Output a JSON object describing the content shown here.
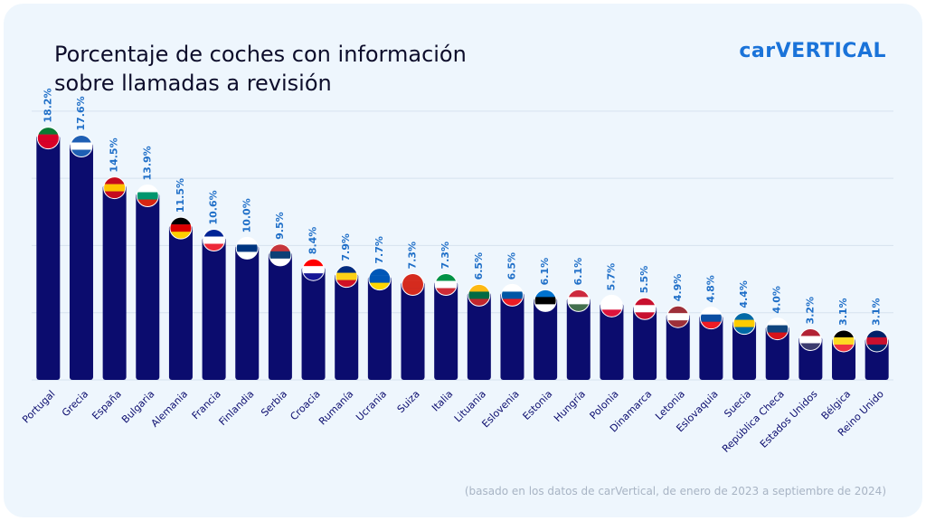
{
  "chart_data": {
    "type": "bar",
    "title": "Porcentaje de coches con información sobre llamadas a revisión",
    "brand": "carVERTICAL",
    "note": "(basado en los datos de carVertical, de enero de 2023 a septiembre de 2024)",
    "categories": [
      "Portugal",
      "Grecia",
      "España",
      "Bulgaria",
      "Alemania",
      "Francia",
      "Finlandia",
      "Serbia",
      "Croacia",
      "Rumanía",
      "Ucrania",
      "Suiza",
      "Italia",
      "Lituania",
      "Eslovenia",
      "Estonia",
      "Hungría",
      "Polonia",
      "Dinamarca",
      "Letonia",
      "Eslovaquia",
      "Suecia",
      "República Checa",
      "Estados Unidos",
      "Bélgica",
      "Reino Unido"
    ],
    "values": [
      18.2,
      17.6,
      14.5,
      13.9,
      11.5,
      10.6,
      10.0,
      9.5,
      8.4,
      7.9,
      7.7,
      7.3,
      7.3,
      6.5,
      6.5,
      6.1,
      6.1,
      5.7,
      5.5,
      4.9,
      4.8,
      4.4,
      4.0,
      3.2,
      3.1,
      3.1
    ],
    "value_labels": [
      "18.2%",
      "17.6%",
      "14.5%",
      "13.9%",
      "11.5%",
      "10.6%",
      "10.0%",
      "9.5%",
      "8.4%",
      "7.9%",
      "7.7%",
      "7.3%",
      "7.3%",
      "6.5%",
      "6.5%",
      "6.1%",
      "6.1%",
      "5.7%",
      "5.5%",
      "4.9%",
      "4.8%",
      "4.4%",
      "4.0%",
      "3.2%",
      "3.1%",
      "3.1%"
    ],
    "color": "#0b0c6e",
    "ylim": [
      0,
      21
    ],
    "yticks": [
      0,
      5,
      10,
      15,
      20
    ],
    "grid": true
  }
}
